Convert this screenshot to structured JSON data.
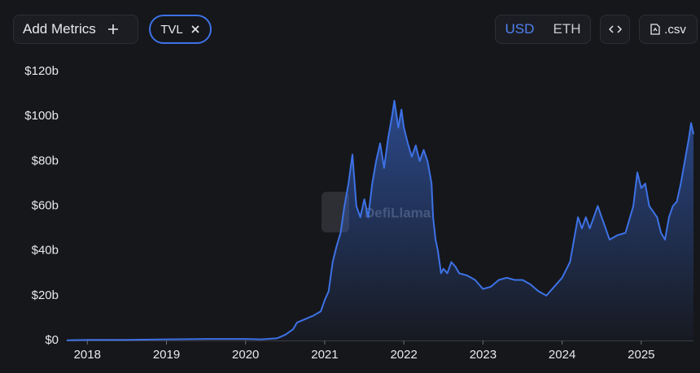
{
  "ui": {
    "add_metrics": "Add Metrics",
    "metric_pill": "TVL",
    "currency_options": [
      "USD",
      "ETH"
    ],
    "active_currency": "USD",
    "csv_button": ".csv",
    "watermark": "DefiLlama"
  },
  "chart_data": {
    "type": "area",
    "color": "#3d72e6",
    "x": [
      2017.74,
      2018.0,
      2018.5,
      2019.0,
      2019.5,
      2020.0,
      2020.2,
      2020.4,
      2020.5,
      2020.6,
      2020.65,
      2020.75,
      2020.85,
      2020.95,
      2021.0,
      2021.05,
      2021.1,
      2021.15,
      2021.2,
      2021.25,
      2021.3,
      2021.35,
      2021.4,
      2021.45,
      2021.5,
      2021.55,
      2021.6,
      2021.65,
      2021.7,
      2021.75,
      2021.8,
      2021.85,
      2021.88,
      2021.93,
      2021.97,
      2022.0,
      2022.05,
      2022.1,
      2022.15,
      2022.2,
      2022.25,
      2022.3,
      2022.35,
      2022.37,
      2022.4,
      2022.43,
      2022.47,
      2022.5,
      2022.55,
      2022.6,
      2022.65,
      2022.7,
      2022.8,
      2022.9,
      2023.0,
      2023.1,
      2023.2,
      2023.3,
      2023.4,
      2023.5,
      2023.6,
      2023.7,
      2023.8,
      2023.9,
      2024.0,
      2024.1,
      2024.15,
      2024.2,
      2024.25,
      2024.3,
      2024.35,
      2024.45,
      2024.5,
      2024.55,
      2024.6,
      2024.7,
      2024.8,
      2024.9,
      2024.95,
      2025.0,
      2025.05,
      2025.1,
      2025.2,
      2025.25,
      2025.3,
      2025.35,
      2025.4,
      2025.45,
      2025.5,
      2025.55,
      2025.6,
      2025.63,
      2025.66
    ],
    "values": [
      0.1,
      0.3,
      0.3,
      0.5,
      0.7,
      0.7,
      0.5,
      1.0,
      2.5,
      5,
      8,
      9.5,
      11,
      13,
      18,
      22,
      35,
      42,
      48,
      60,
      70,
      83,
      60,
      55,
      63,
      55,
      70,
      80,
      88,
      77,
      90,
      100,
      107,
      95,
      103,
      95,
      88,
      82,
      87,
      80,
      85,
      80,
      70,
      55,
      45,
      40,
      30,
      32,
      30,
      35,
      33,
      30,
      29,
      27,
      23,
      24,
      27,
      28,
      27,
      27,
      25,
      22,
      20,
      24,
      28,
      35,
      45,
      55,
      50,
      55,
      50,
      60,
      55,
      50,
      45,
      47,
      48,
      60,
      75,
      68,
      70,
      60,
      55,
      48,
      45,
      55,
      60,
      62,
      70,
      80,
      90,
      97,
      92
    ],
    "xlim": [
      2017.74,
      2025.66
    ],
    "xticks": [
      2018,
      2019,
      2020,
      2021,
      2022,
      2023,
      2024,
      2025
    ],
    "ylim": [
      0,
      120
    ],
    "yticks": [
      {
        "value": 0,
        "label": "$0"
      },
      {
        "value": 20,
        "label": "$20b"
      },
      {
        "value": 40,
        "label": "$40b"
      },
      {
        "value": 60,
        "label": "$60b"
      },
      {
        "value": 80,
        "label": "$80b"
      },
      {
        "value": 100,
        "label": "$100b"
      },
      {
        "value": 120,
        "label": "$120b"
      }
    ]
  }
}
